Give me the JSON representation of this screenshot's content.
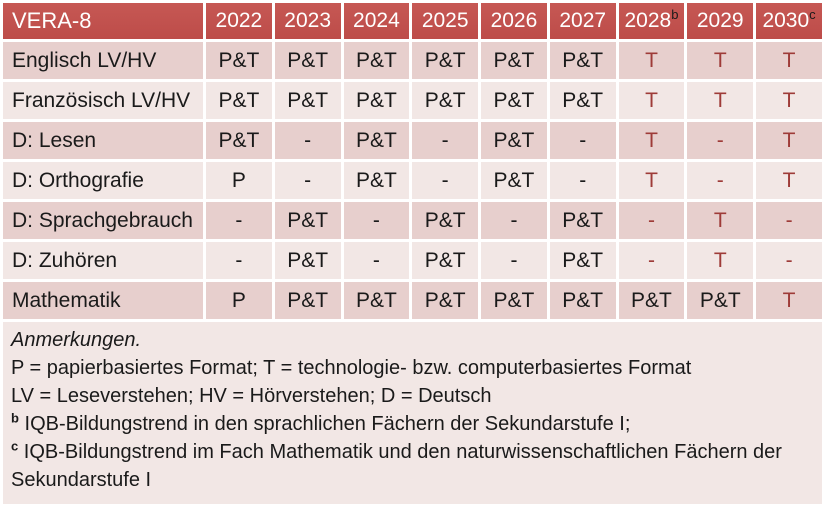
{
  "table": {
    "title": "VERA-8",
    "years": [
      {
        "label": "2022",
        "sup": ""
      },
      {
        "label": "2023",
        "sup": ""
      },
      {
        "label": "2024",
        "sup": ""
      },
      {
        "label": "2025",
        "sup": ""
      },
      {
        "label": "2026",
        "sup": ""
      },
      {
        "label": "2027",
        "sup": ""
      },
      {
        "label": "2028",
        "sup": "b"
      },
      {
        "label": "2029",
        "sup": ""
      },
      {
        "label": "2030",
        "sup": "c"
      }
    ],
    "rows": [
      {
        "label": "Englisch LV/HV",
        "cells": [
          {
            "v": "P&T",
            "red": false
          },
          {
            "v": "P&T",
            "red": false
          },
          {
            "v": "P&T",
            "red": false
          },
          {
            "v": "P&T",
            "red": false
          },
          {
            "v": "P&T",
            "red": false
          },
          {
            "v": "P&T",
            "red": false
          },
          {
            "v": "T",
            "red": true
          },
          {
            "v": "T",
            "red": true
          },
          {
            "v": "T",
            "red": true
          }
        ]
      },
      {
        "label": "Französisch LV/HV",
        "cells": [
          {
            "v": "P&T",
            "red": false
          },
          {
            "v": "P&T",
            "red": false
          },
          {
            "v": "P&T",
            "red": false
          },
          {
            "v": "P&T",
            "red": false
          },
          {
            "v": "P&T",
            "red": false
          },
          {
            "v": "P&T",
            "red": false
          },
          {
            "v": "T",
            "red": true
          },
          {
            "v": "T",
            "red": true
          },
          {
            "v": "T",
            "red": true
          }
        ]
      },
      {
        "label": "D: Lesen",
        "cells": [
          {
            "v": "P&T",
            "red": false
          },
          {
            "v": "-",
            "red": false
          },
          {
            "v": "P&T",
            "red": false
          },
          {
            "v": "-",
            "red": false
          },
          {
            "v": "P&T",
            "red": false
          },
          {
            "v": "-",
            "red": false
          },
          {
            "v": "T",
            "red": true
          },
          {
            "v": "-",
            "red": true
          },
          {
            "v": "T",
            "red": true
          }
        ]
      },
      {
        "label": "D: Orthografie",
        "cells": [
          {
            "v": "P",
            "red": false
          },
          {
            "v": "-",
            "red": false
          },
          {
            "v": "P&T",
            "red": false
          },
          {
            "v": "-",
            "red": false
          },
          {
            "v": "P&T",
            "red": false
          },
          {
            "v": "-",
            "red": false
          },
          {
            "v": "T",
            "red": true
          },
          {
            "v": "-",
            "red": true
          },
          {
            "v": "T",
            "red": true
          }
        ]
      },
      {
        "label": "D: Sprachgebrauch",
        "cells": [
          {
            "v": "-",
            "red": false
          },
          {
            "v": "P&T",
            "red": false
          },
          {
            "v": "-",
            "red": false
          },
          {
            "v": "P&T",
            "red": false
          },
          {
            "v": "-",
            "red": false
          },
          {
            "v": "P&T",
            "red": false
          },
          {
            "v": "-",
            "red": true
          },
          {
            "v": "T",
            "red": true
          },
          {
            "v": "-",
            "red": true
          }
        ]
      },
      {
        "label": "D: Zuhören",
        "cells": [
          {
            "v": "-",
            "red": false
          },
          {
            "v": "P&T",
            "red": false
          },
          {
            "v": "-",
            "red": false
          },
          {
            "v": "P&T",
            "red": false
          },
          {
            "v": "-",
            "red": false
          },
          {
            "v": "P&T",
            "red": false
          },
          {
            "v": "-",
            "red": true
          },
          {
            "v": "T",
            "red": true
          },
          {
            "v": "-",
            "red": true
          }
        ]
      },
      {
        "label": "Mathematik",
        "cells": [
          {
            "v": "P",
            "red": false
          },
          {
            "v": "P&T",
            "red": false
          },
          {
            "v": "P&T",
            "red": false
          },
          {
            "v": "P&T",
            "red": false
          },
          {
            "v": "P&T",
            "red": false
          },
          {
            "v": "P&T",
            "red": false
          },
          {
            "v": "P&T",
            "red": false
          },
          {
            "v": "P&T",
            "red": false
          },
          {
            "v": "T",
            "red": true
          }
        ]
      }
    ]
  },
  "notes": {
    "lines": [
      {
        "sup": "",
        "italic": true,
        "text": "Anmerkungen."
      },
      {
        "sup": "",
        "italic": false,
        "text": "P = papierbasiertes Format; T = technologie- bzw. computerbasiertes Format"
      },
      {
        "sup": "",
        "italic": false,
        "text": "LV = Leseverstehen; HV = Hörverstehen; D = Deutsch"
      },
      {
        "sup": "b",
        "italic": false,
        "text": "IQB-Bildungstrend in den sprachlichen Fächern der Sekundarstufe I;"
      },
      {
        "sup": "c",
        "italic": false,
        "text": "IQB-Bildungstrend im Fach Mathematik und den naturwissenschaftlichen Fächern der Sekundarstufe I"
      }
    ]
  },
  "colors": {
    "header_bg": "#c0504d",
    "header_text": "#ffffff",
    "row_dark_bg": "#e7cfcd",
    "row_light_bg": "#f2e7e5",
    "notes_bg": "#f2e7e5",
    "red_text": "#9e3b38",
    "body_text": "#1a1a1a",
    "grid": "#ffffff"
  }
}
